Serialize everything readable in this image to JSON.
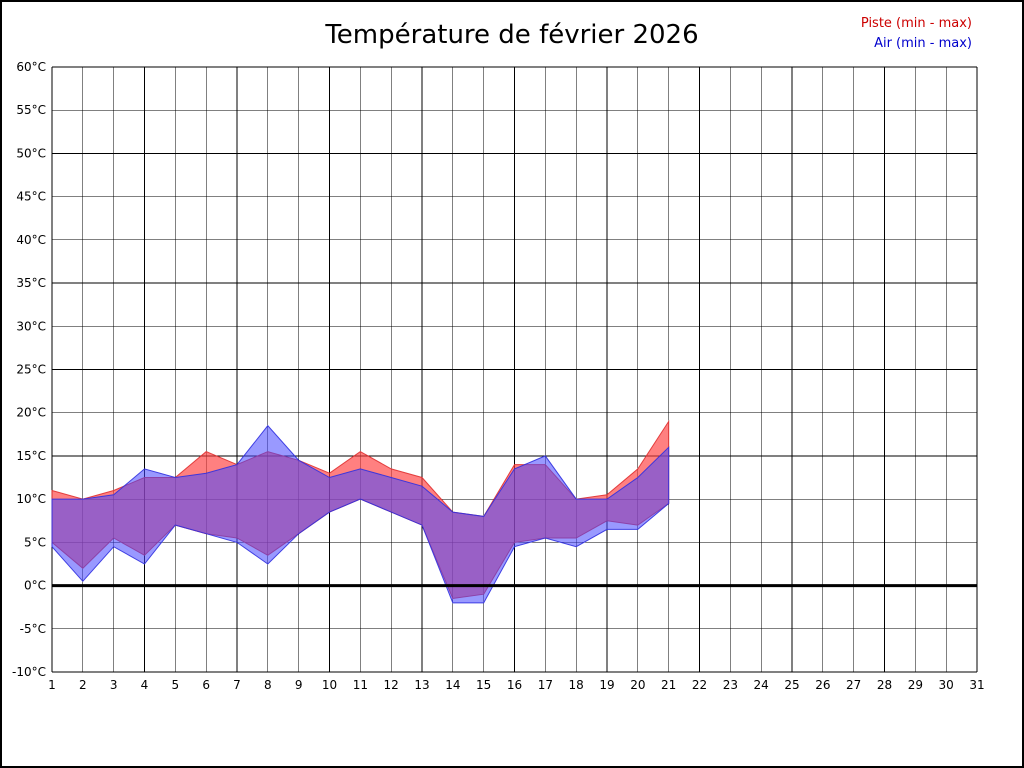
{
  "title": "Température de février 2026",
  "legend": {
    "piste": {
      "label": "Piste (min - max)",
      "color": "#cc0000"
    },
    "air": {
      "label": "Air (min - max)",
      "color": "#0000cc"
    }
  },
  "chart_data": {
    "type": "area",
    "title": "Température de février 2026",
    "xlabel": "",
    "ylabel": "",
    "grid": true,
    "legend_position": "top-right",
    "ylim": [
      -10,
      60
    ],
    "y_step": 5,
    "y_tick_labels": [
      "60°C",
      "55°C",
      "50°C",
      "45°C",
      "40°C",
      "35°C",
      "30°C",
      "25°C",
      "20°C",
      "15°C",
      "10°C",
      "5°C",
      "0°C",
      "-5°C",
      "-10°C"
    ],
    "y_tick_values": [
      60,
      55,
      50,
      45,
      40,
      35,
      30,
      25,
      20,
      15,
      10,
      5,
      0,
      -5,
      -10
    ],
    "x_tick_labels": [
      "1",
      "2",
      "3",
      "4",
      "5",
      "6",
      "7",
      "8",
      "9",
      "10",
      "11",
      "12",
      "13",
      "14",
      "15",
      "16",
      "17",
      "18",
      "19",
      "20",
      "21",
      "22",
      "23",
      "24",
      "25",
      "26",
      "27",
      "28",
      "29",
      "30",
      "31"
    ],
    "x_tick_values": [
      1,
      2,
      3,
      4,
      5,
      6,
      7,
      8,
      9,
      10,
      11,
      12,
      13,
      14,
      15,
      16,
      17,
      18,
      19,
      20,
      21,
      22,
      23,
      24,
      25,
      26,
      27,
      28,
      29,
      30,
      31
    ],
    "zero_line": true,
    "x": [
      1,
      2,
      3,
      4,
      5,
      6,
      7,
      8,
      9,
      10,
      11,
      12,
      13,
      14,
      15,
      16,
      17,
      18,
      19,
      20,
      21
    ],
    "series": [
      {
        "name": "Piste min",
        "values": [
          5,
          2,
          5.5,
          3.5,
          7,
          6,
          5.5,
          3.5,
          6,
          8.5,
          10,
          8.5,
          7,
          -1.5,
          -1,
          5,
          5.5,
          5.5,
          7.5,
          7,
          9.5
        ]
      },
      {
        "name": "Piste max",
        "values": [
          11,
          10,
          11,
          12.5,
          12.5,
          15.5,
          14,
          15.5,
          14.5,
          13,
          15.5,
          13.5,
          12.5,
          8.5,
          8,
          14,
          14,
          10,
          10.5,
          13.5,
          19
        ]
      },
      {
        "name": "Air min",
        "values": [
          4.5,
          0.5,
          4.5,
          2.5,
          7,
          6,
          5,
          2.5,
          6,
          8.5,
          10,
          8.5,
          7,
          -2,
          -2,
          4.5,
          5.5,
          4.5,
          6.5,
          6.5,
          9.5
        ]
      },
      {
        "name": "Air max",
        "values": [
          10,
          10,
          10.5,
          13.5,
          12.5,
          13,
          14,
          18.5,
          14.5,
          12.5,
          13.5,
          12.5,
          11.5,
          8.5,
          8,
          13.5,
          15,
          10,
          10,
          12.5,
          16
        ]
      }
    ],
    "band_colors": {
      "piste": "#ff3c3c",
      "air": "#4646ff"
    },
    "band_edge_colors": {
      "piste": "#e03030",
      "air": "#3030e0"
    },
    "band_opacity": {
      "piste": 0.65,
      "air": 0.55
    },
    "grid_color": "#000000",
    "zero_line_color": "#000000"
  }
}
